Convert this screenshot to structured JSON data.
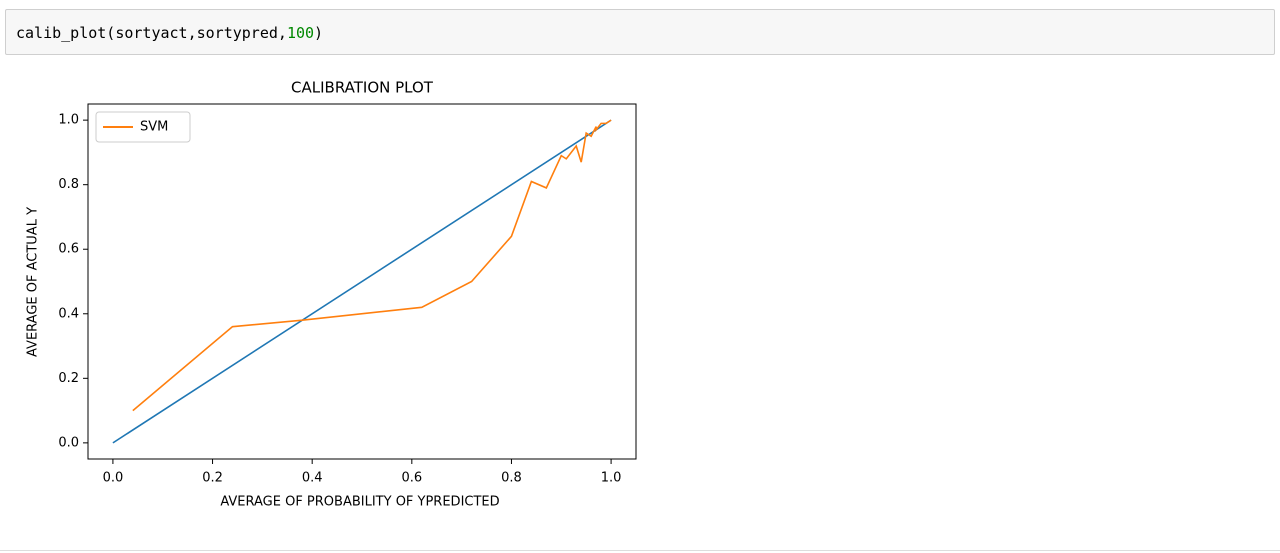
{
  "code_cell": {
    "prefix": "calib_plot(sortyact,sortypred,",
    "number": "100",
    "suffix": ")"
  },
  "chart_data": {
    "type": "line",
    "title": "CALIBRATION PLOT",
    "x_label": "AVERAGE OF PROBABILITY OF YPREDICTED",
    "y_label": "AVERAGE OF ACTUAL Y",
    "xlim": [
      -0.05,
      1.05
    ],
    "ylim": [
      -0.05,
      1.05
    ],
    "xticks": [
      {
        "value": 0,
        "label": "0.0"
      },
      {
        "value": 0.2,
        "label": "0.2"
      },
      {
        "value": 0.4,
        "label": "0.4"
      },
      {
        "value": 0.6,
        "label": "0.6"
      },
      {
        "value": 0.8,
        "label": "0.8"
      },
      {
        "value": 1,
        "label": "1.0"
      }
    ],
    "yticks": [
      {
        "value": 0,
        "label": "0.0"
      },
      {
        "value": 0.2,
        "label": "0.2"
      },
      {
        "value": 0.4,
        "label": "0.4"
      },
      {
        "value": 0.6,
        "label": "0.6"
      },
      {
        "value": 0.8,
        "label": "0.8"
      },
      {
        "value": 1,
        "label": "1.0"
      }
    ],
    "grid": false,
    "legend": "upper left",
    "series": [
      {
        "color": "#1f77b4",
        "x": [
          0,
          1
        ],
        "values": [
          0,
          1
        ]
      },
      {
        "name": "SVM",
        "color": "#ff7f0e",
        "x": [
          0.04,
          0.24,
          0.38,
          0.62,
          0.72,
          0.8,
          0.84,
          0.87,
          0.9,
          0.91,
          0.93,
          0.94,
          0.95,
          0.96,
          0.97,
          0.97,
          0.98,
          0.99,
          1.0
        ],
        "values": [
          0.1,
          0.36,
          0.38,
          0.42,
          0.5,
          0.64,
          0.81,
          0.79,
          0.89,
          0.88,
          0.92,
          0.87,
          0.96,
          0.95,
          0.98,
          0.97,
          0.99,
          0.99,
          1.0
        ]
      }
    ]
  }
}
